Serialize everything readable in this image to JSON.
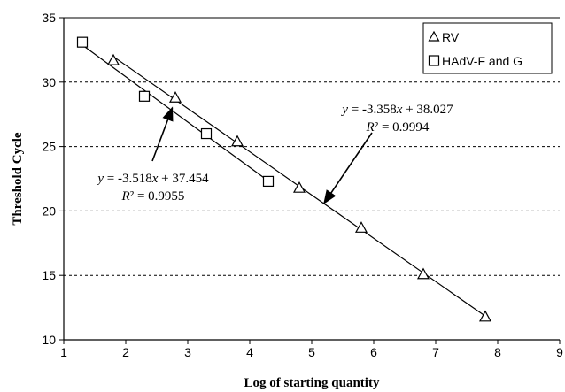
{
  "chart_data": {
    "type": "scatter",
    "xlabel": "Log of starting quantity",
    "ylabel": "Threshold Cycle",
    "xlim": [
      1,
      9
    ],
    "ylim": [
      10,
      35
    ],
    "xticks": [
      1,
      2,
      3,
      4,
      5,
      6,
      7,
      8,
      9
    ],
    "yticks": [
      10,
      15,
      20,
      25,
      30,
      35
    ],
    "grid": "horizontal-dashed",
    "legend_position": "top-right",
    "series": [
      {
        "name": "RV",
        "marker": "triangle",
        "x": [
          1.8,
          2.8,
          3.8,
          4.8,
          5.8,
          6.8,
          7.8
        ],
        "y": [
          31.7,
          28.8,
          25.4,
          21.8,
          18.7,
          15.1,
          11.8
        ],
        "fit": {
          "slope": -3.358,
          "intercept": 38.027,
          "x_range": [
            1.8,
            7.8
          ]
        }
      },
      {
        "name": "HAdV-F and G",
        "marker": "square",
        "x": [
          1.3,
          2.3,
          3.3,
          4.3
        ],
        "y": [
          33.1,
          28.9,
          26.0,
          22.3
        ],
        "fit": {
          "slope": -3.518,
          "intercept": 37.454,
          "x_range": [
            1.3,
            4.3
          ]
        }
      }
    ],
    "annotations": [
      {
        "equation": "y = -3.358x + 38.027",
        "r2": "R² = 0.9994",
        "arrow_to": [
          5.2,
          20.6
        ]
      },
      {
        "equation": "y = -3.518x + 37.454",
        "r2": "R² = 0.9955",
        "arrow_to": [
          2.75,
          28.0
        ]
      }
    ]
  }
}
